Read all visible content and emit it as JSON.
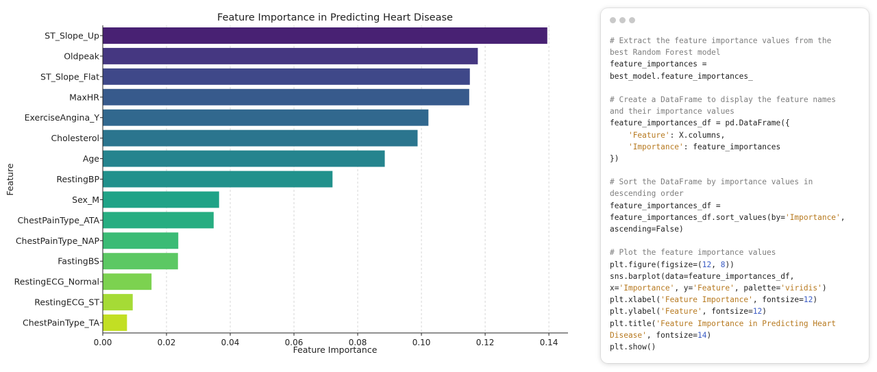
{
  "chart_data": {
    "type": "bar",
    "orientation": "horizontal",
    "title": "Feature Importance in Predicting Heart Disease",
    "xlabel": "Feature Importance",
    "ylabel": "Feature",
    "categories": [
      "ST_Slope_Up",
      "Oldpeak",
      "ST_Slope_Flat",
      "MaxHR",
      "ExerciseAngina_Y",
      "Cholesterol",
      "Age",
      "RestingBP",
      "Sex_M",
      "ChestPainType_ATA",
      "ChestPainType_NAP",
      "FastingBS",
      "RestingECG_Normal",
      "RestingECG_ST",
      "ChestPainType_TA"
    ],
    "values": [
      0.1395,
      0.1177,
      0.1152,
      0.115,
      0.1022,
      0.0988,
      0.0885,
      0.0721,
      0.0365,
      0.0348,
      0.0237,
      0.0236,
      0.0153,
      0.0094,
      0.0076
    ],
    "colors": [
      "#482173",
      "#453781",
      "#3f4889",
      "#375a8c",
      "#31688e",
      "#2b758e",
      "#25848e",
      "#21918c",
      "#20a387",
      "#27ad81",
      "#3bbb75",
      "#5cc863",
      "#7cd250",
      "#a5db36",
      "#c2df23"
    ],
    "xlim": [
      0,
      0.146
    ],
    "xticks": [
      "0.00",
      "0.02",
      "0.04",
      "0.06",
      "0.08",
      "0.10",
      "0.12",
      "0.14"
    ],
    "grid": "vertical dashed"
  },
  "code_window": {
    "lines": [
      [
        [
          "# Extract the feature importance values from the",
          "comment"
        ]
      ],
      [
        [
          "best Random Forest model",
          "comment"
        ]
      ],
      [
        [
          "feature_importances =",
          "plain"
        ]
      ],
      [
        [
          "best_model.feature_importances_",
          "plain"
        ]
      ],
      [
        [
          "",
          "plain"
        ]
      ],
      [
        [
          "# Create a DataFrame to display the feature names",
          "comment"
        ]
      ],
      [
        [
          "and their importance values",
          "comment"
        ]
      ],
      [
        [
          "feature_importances_df = pd.DataFrame({",
          "plain"
        ]
      ],
      [
        [
          "    ",
          "plain"
        ],
        [
          "'Feature'",
          "string"
        ],
        [
          ": X.columns,",
          "plain"
        ]
      ],
      [
        [
          "    ",
          "plain"
        ],
        [
          "'Importance'",
          "string"
        ],
        [
          ": feature_importances",
          "plain"
        ]
      ],
      [
        [
          "})",
          "plain"
        ]
      ],
      [
        [
          "",
          "plain"
        ]
      ],
      [
        [
          "# Sort the DataFrame by importance values in",
          "comment"
        ]
      ],
      [
        [
          "descending order",
          "comment"
        ]
      ],
      [
        [
          "feature_importances_df =",
          "plain"
        ]
      ],
      [
        [
          "feature_importances_df.sort_values(by=",
          "plain"
        ],
        [
          "'Importance'",
          "string"
        ],
        [
          ",",
          "plain"
        ]
      ],
      [
        [
          "ascending=False)",
          "plain"
        ]
      ],
      [
        [
          "",
          "plain"
        ]
      ],
      [
        [
          "# Plot the feature importance values",
          "comment"
        ]
      ],
      [
        [
          "plt.figure(figsize=(",
          "plain"
        ],
        [
          "12",
          "number"
        ],
        [
          ", ",
          "plain"
        ],
        [
          "8",
          "number"
        ],
        [
          "))",
          "plain"
        ]
      ],
      [
        [
          "sns.barplot(data=feature_importances_df,",
          "plain"
        ]
      ],
      [
        [
          "x=",
          "plain"
        ],
        [
          "'Importance'",
          "string"
        ],
        [
          ", y=",
          "plain"
        ],
        [
          "'Feature'",
          "string"
        ],
        [
          ", palette=",
          "plain"
        ],
        [
          "'viridis'",
          "string"
        ],
        [
          ")",
          "plain"
        ]
      ],
      [
        [
          "plt.xlabel(",
          "plain"
        ],
        [
          "'Feature Importance'",
          "string"
        ],
        [
          ", fontsize=",
          "plain"
        ],
        [
          "12",
          "number"
        ],
        [
          ")",
          "plain"
        ]
      ],
      [
        [
          "plt.ylabel(",
          "plain"
        ],
        [
          "'Feature'",
          "string"
        ],
        [
          ", fontsize=",
          "plain"
        ],
        [
          "12",
          "number"
        ],
        [
          ")",
          "plain"
        ]
      ],
      [
        [
          "plt.title(",
          "plain"
        ],
        [
          "'Feature Importance in Predicting Heart",
          "string"
        ]
      ],
      [
        [
          "Disease'",
          "string"
        ],
        [
          ", fontsize=",
          "plain"
        ],
        [
          "14",
          "number"
        ],
        [
          ")",
          "plain"
        ]
      ],
      [
        [
          "plt.show()",
          "plain"
        ]
      ]
    ]
  }
}
